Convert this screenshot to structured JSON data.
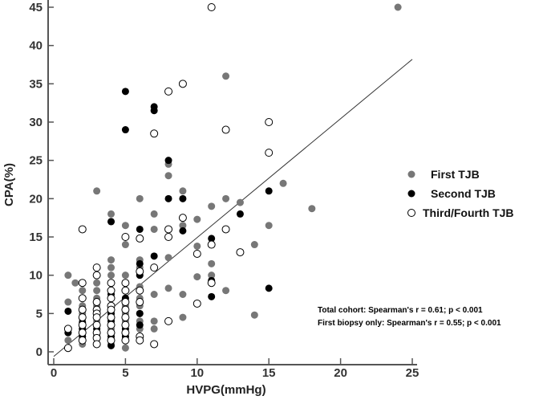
{
  "chart_data": {
    "type": "scatter",
    "title": "",
    "xlabel": "HVPG(mmHg)",
    "ylabel": "CPA(%)",
    "xlim": [
      0,
      25
    ],
    "ylim": [
      0,
      45
    ],
    "xticks": [
      "0",
      "5",
      "10",
      "15",
      "20",
      "25"
    ],
    "yticks": [
      "0",
      "5",
      "10",
      "15",
      "20",
      "25",
      "30",
      "35",
      "40",
      "45"
    ],
    "grid": false,
    "legend_position": "right",
    "series": [
      {
        "name": "First TJB",
        "marker": "filled-gray",
        "color": "#777777",
        "points": [
          [
            1,
            10
          ],
          [
            1,
            2.5
          ],
          [
            1,
            1.5
          ],
          [
            1,
            6.5
          ],
          [
            1.5,
            9
          ],
          [
            2,
            1
          ],
          [
            2,
            2
          ],
          [
            2,
            2.5
          ],
          [
            2,
            3
          ],
          [
            2,
            3.5
          ],
          [
            2,
            4
          ],
          [
            2,
            4.5
          ],
          [
            2,
            5
          ],
          [
            2,
            5.5
          ],
          [
            2,
            6
          ],
          [
            2,
            7
          ],
          [
            2,
            8
          ],
          [
            2,
            9
          ],
          [
            3,
            21
          ],
          [
            3,
            1
          ],
          [
            3,
            2
          ],
          [
            3,
            3
          ],
          [
            3,
            4
          ],
          [
            3,
            5
          ],
          [
            3,
            6
          ],
          [
            3,
            7
          ],
          [
            3,
            8
          ],
          [
            3,
            9
          ],
          [
            3,
            10
          ],
          [
            4,
            18
          ],
          [
            4,
            17
          ],
          [
            4,
            12
          ],
          [
            4,
            11
          ],
          [
            4,
            10
          ],
          [
            4,
            9
          ],
          [
            4,
            8
          ],
          [
            4,
            7
          ],
          [
            4,
            6
          ],
          [
            4,
            5
          ],
          [
            4,
            4
          ],
          [
            4,
            3
          ],
          [
            4,
            2
          ],
          [
            4,
            1
          ],
          [
            5,
            16.5
          ],
          [
            5,
            14
          ],
          [
            5,
            10
          ],
          [
            5,
            9
          ],
          [
            5,
            8
          ],
          [
            5,
            7
          ],
          [
            5,
            6
          ],
          [
            5,
            5
          ],
          [
            5,
            4
          ],
          [
            5,
            3
          ],
          [
            5,
            2
          ],
          [
            5,
            0.5
          ],
          [
            6,
            20
          ],
          [
            6,
            12
          ],
          [
            6,
            11
          ],
          [
            6,
            10
          ],
          [
            6,
            8.5
          ],
          [
            6,
            8
          ],
          [
            6,
            7
          ],
          [
            6,
            6
          ],
          [
            6,
            5
          ],
          [
            6,
            4
          ],
          [
            6,
            3
          ],
          [
            6,
            2
          ],
          [
            7,
            18
          ],
          [
            7,
            16
          ],
          [
            7,
            7.5
          ],
          [
            7,
            3
          ],
          [
            7,
            4
          ],
          [
            8,
            23
          ],
          [
            8,
            24.5
          ],
          [
            8,
            12.3
          ],
          [
            8,
            8.3
          ],
          [
            9,
            21
          ],
          [
            9,
            16.5
          ],
          [
            9,
            7.5
          ],
          [
            9,
            4.5
          ],
          [
            10,
            17.3
          ],
          [
            10,
            13.8
          ],
          [
            10,
            9.8
          ],
          [
            11,
            19
          ],
          [
            11,
            10
          ],
          [
            11,
            11.5
          ],
          [
            12,
            36
          ],
          [
            12,
            20
          ],
          [
            12,
            8
          ],
          [
            13,
            19.5
          ],
          [
            14,
            14
          ],
          [
            14,
            4.8
          ],
          [
            15,
            16.5
          ],
          [
            16,
            22
          ],
          [
            18,
            18.7
          ],
          [
            24,
            45
          ]
        ]
      },
      {
        "name": "Second TJB",
        "marker": "filled-black",
        "color": "#000000",
        "points": [
          [
            1,
            5.3
          ],
          [
            1,
            2.5
          ],
          [
            2,
            3.8
          ],
          [
            2,
            3
          ],
          [
            2,
            2
          ],
          [
            3,
            5.5
          ],
          [
            3,
            4.5
          ],
          [
            3,
            3
          ],
          [
            3,
            2
          ],
          [
            3,
            1
          ],
          [
            4,
            17
          ],
          [
            4,
            7.5
          ],
          [
            4,
            6
          ],
          [
            4,
            5
          ],
          [
            4,
            4
          ],
          [
            4,
            2
          ],
          [
            4,
            0.8
          ],
          [
            5,
            34
          ],
          [
            5,
            29
          ],
          [
            5,
            7
          ],
          [
            5,
            5.5
          ],
          [
            5,
            4.5
          ],
          [
            5,
            3
          ],
          [
            5,
            2
          ],
          [
            6,
            16
          ],
          [
            6,
            11.5
          ],
          [
            6,
            10
          ],
          [
            6,
            5
          ],
          [
            6,
            3.5
          ],
          [
            7,
            32
          ],
          [
            7,
            31.5
          ],
          [
            7,
            12.5
          ],
          [
            8,
            25
          ],
          [
            8,
            20
          ],
          [
            9,
            20
          ],
          [
            9,
            15.8
          ],
          [
            11,
            14.8
          ],
          [
            11,
            9.3
          ],
          [
            11,
            7.2
          ],
          [
            13,
            18
          ],
          [
            15,
            21
          ],
          [
            15,
            8.3
          ]
        ]
      },
      {
        "name": "Third/Fourth TJB",
        "marker": "open-circle",
        "color": "#000000",
        "points": [
          [
            1,
            3
          ],
          [
            1,
            0.5
          ],
          [
            2,
            16
          ],
          [
            2,
            9
          ],
          [
            2,
            7
          ],
          [
            2,
            5.5
          ],
          [
            2,
            4.5
          ],
          [
            2,
            3.5
          ],
          [
            2,
            2.5
          ],
          [
            2,
            1.5
          ],
          [
            3,
            11
          ],
          [
            3,
            10
          ],
          [
            3,
            6.5
          ],
          [
            3,
            5.5
          ],
          [
            3,
            5
          ],
          [
            3,
            4.5
          ],
          [
            3,
            3.5
          ],
          [
            3,
            2.5
          ],
          [
            3,
            1.8
          ],
          [
            3,
            1
          ],
          [
            4,
            9
          ],
          [
            4,
            8
          ],
          [
            4,
            7
          ],
          [
            4,
            6
          ],
          [
            4,
            5.5
          ],
          [
            4,
            4.5
          ],
          [
            4,
            3.5
          ],
          [
            4,
            2.5
          ],
          [
            4,
            1.5
          ],
          [
            5,
            15
          ],
          [
            5,
            9
          ],
          [
            5,
            8
          ],
          [
            5,
            6.5
          ],
          [
            5,
            5.5
          ],
          [
            5,
            4.5
          ],
          [
            5,
            3.5
          ],
          [
            5,
            2.5
          ],
          [
            5,
            1.5
          ],
          [
            6,
            14.8
          ],
          [
            6,
            10.5
          ],
          [
            6,
            8
          ],
          [
            6,
            6.5
          ],
          [
            6,
            2
          ],
          [
            6,
            1.5
          ],
          [
            7,
            28.5
          ],
          [
            7,
            11
          ],
          [
            7,
            1
          ],
          [
            8,
            34
          ],
          [
            8,
            16
          ],
          [
            8,
            15
          ],
          [
            8,
            4
          ],
          [
            9,
            35
          ],
          [
            9,
            17.5
          ],
          [
            10,
            12.8
          ],
          [
            10,
            6.3
          ],
          [
            11,
            45
          ],
          [
            11,
            14
          ],
          [
            11,
            9
          ],
          [
            12,
            29
          ],
          [
            12,
            16
          ],
          [
            13,
            13
          ],
          [
            15,
            30
          ],
          [
            15,
            26
          ]
        ]
      }
    ],
    "trendline": {
      "x": [
        0,
        25
      ],
      "y": [
        -0.6,
        38.2
      ]
    },
    "annotations": [
      "Total cohort: Spearman's r = 0.61; p < 0.001",
      "First biopsy only: Spearman's r = 0.55; p < 0.001"
    ]
  }
}
